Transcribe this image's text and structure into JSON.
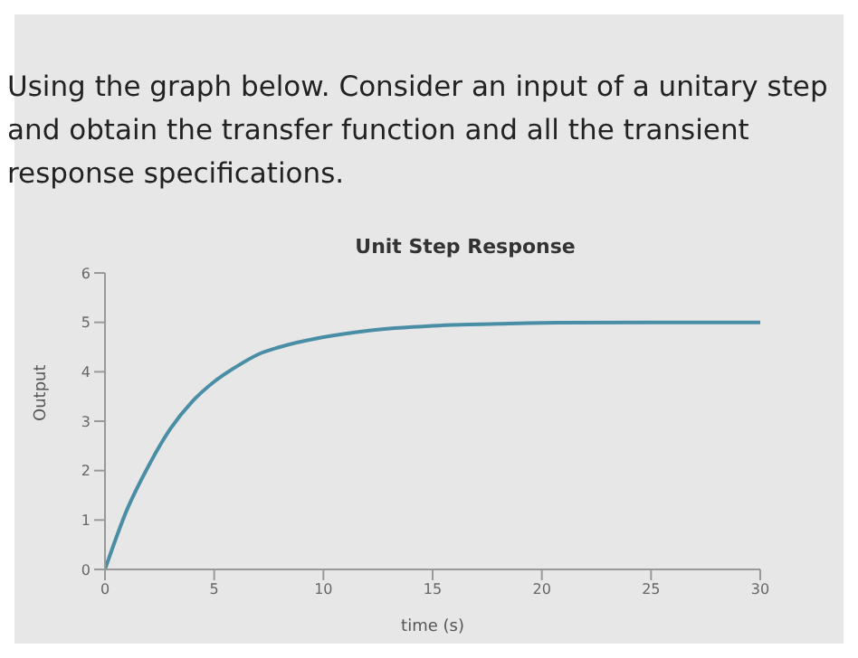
{
  "chart_data": {
    "type": "line",
    "title": "Unit Step Response",
    "xlabel": "time (s)",
    "ylabel": "Output",
    "annotations": [
      "Using the graph below. Consider an input of a unitary step and obtain the transfer function and all the transient response specifications."
    ],
    "x": [
      0,
      1,
      2,
      3,
      4,
      5,
      6,
      7,
      8,
      10,
      12,
      15,
      18,
      20,
      25,
      30
    ],
    "series": [
      {
        "color": "#4a8ea6",
        "values": [
          0,
          1.2,
          2.1,
          2.85,
          3.4,
          3.8,
          4.1,
          4.35,
          4.5,
          4.7,
          4.83,
          4.93,
          4.97,
          4.99,
          5,
          5
        ]
      }
    ],
    "xlim": [
      0,
      30
    ],
    "xticks": [
      0,
      5,
      10,
      15,
      20,
      25,
      30
    ],
    "ylim": [
      0,
      6
    ],
    "yticks": [
      0,
      1,
      2,
      3,
      4,
      5,
      6
    ],
    "grid": false,
    "marker": "none",
    "line_style": "solid"
  }
}
